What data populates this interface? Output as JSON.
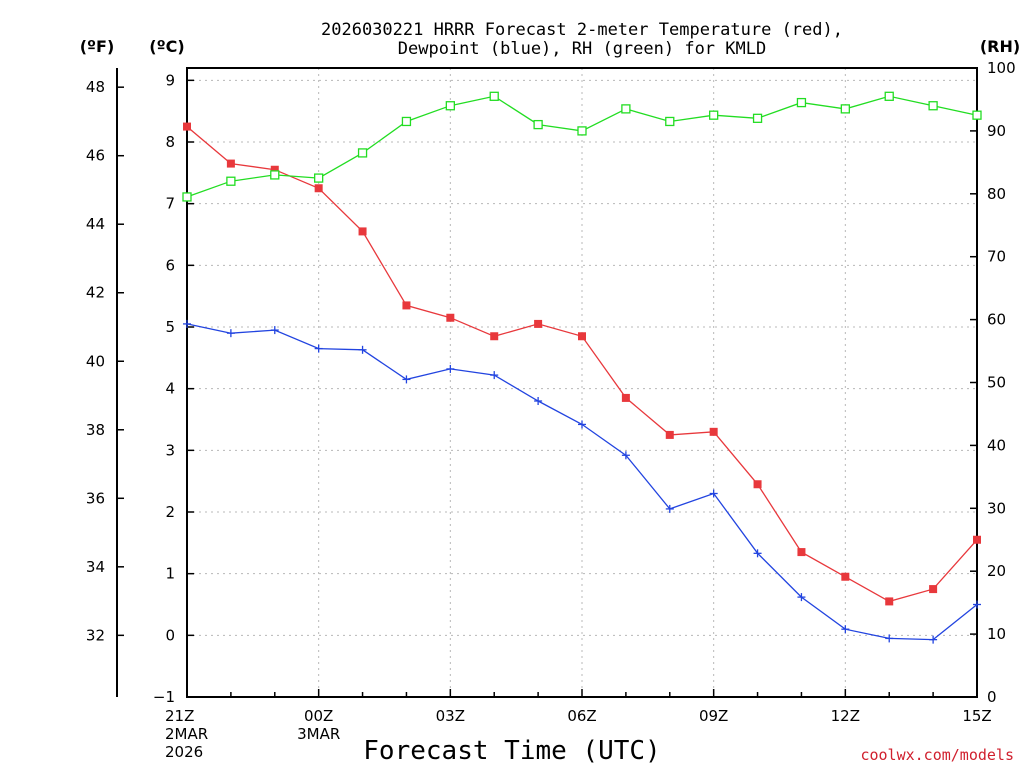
{
  "chart_data": {
    "type": "line",
    "title_line1": "2026030221 HRRR Forecast 2-meter Temperature (red),",
    "title_line2": "Dewpoint (blue), RH (green) for KMLD",
    "xlabel": "Forecast Time (UTC)",
    "credit": "coolwx.com/models",
    "unit_f": "(ºF)",
    "unit_c": "(ºC)",
    "unit_rh": "(RH)",
    "x_hours": [
      0,
      1,
      2,
      3,
      4,
      5,
      6,
      7,
      8,
      9,
      10,
      11,
      12,
      13,
      14,
      15,
      16,
      17,
      18
    ],
    "xlim": [
      0,
      18
    ],
    "x_ticks": [
      {
        "hour": 0,
        "lines": [
          "21Z",
          "2MAR",
          "2026"
        ]
      },
      {
        "hour": 3,
        "lines": [
          "00Z",
          "3MAR"
        ]
      },
      {
        "hour": 6,
        "lines": [
          "03Z"
        ]
      },
      {
        "hour": 9,
        "lines": [
          "06Z"
        ]
      },
      {
        "hour": 12,
        "lines": [
          "09Z"
        ]
      },
      {
        "hour": 15,
        "lines": [
          "12Z"
        ]
      },
      {
        "hour": 18,
        "lines": [
          "15Z"
        ]
      }
    ],
    "ylim_c": [
      -1,
      9.2
    ],
    "y_ticks_c": [
      -1,
      0,
      1,
      2,
      3,
      4,
      5,
      6,
      7,
      8,
      9
    ],
    "ylim_f": [
      30.2,
      48.56
    ],
    "y_ticks_f": [
      32,
      34,
      36,
      38,
      40,
      42,
      44,
      46,
      48
    ],
    "ylim_rh": [
      0,
      100
    ],
    "y_ticks_rh": [
      0,
      10,
      20,
      30,
      40,
      50,
      60,
      70,
      80,
      90,
      100
    ],
    "series": [
      {
        "name": "Temperature",
        "axis": "c",
        "color": "#e8383c",
        "marker": "filled-square",
        "values": [
          8.25,
          7.65,
          7.55,
          7.25,
          6.55,
          5.35,
          5.15,
          4.85,
          5.05,
          4.85,
          3.85,
          3.25,
          3.3,
          2.45,
          1.35,
          0.95,
          0.55,
          0.75,
          1.55
        ]
      },
      {
        "name": "Dewpoint",
        "axis": "c",
        "color": "#2244e0",
        "marker": "plus",
        "values": [
          5.05,
          4.9,
          4.95,
          4.65,
          4.63,
          4.15,
          4.32,
          4.22,
          3.8,
          3.42,
          2.92,
          2.05,
          2.3,
          1.33,
          0.62,
          0.1,
          -0.05,
          -0.07,
          0.5
        ]
      },
      {
        "name": "RH",
        "axis": "rh",
        "color": "#22dd22",
        "marker": "open-square",
        "values": [
          79.5,
          82,
          83,
          82.5,
          86.5,
          91.5,
          94,
          95.5,
          91,
          90,
          93.5,
          91.5,
          92.5,
          92,
          94.5,
          93.5,
          95.5,
          94,
          92.5
        ]
      }
    ]
  }
}
